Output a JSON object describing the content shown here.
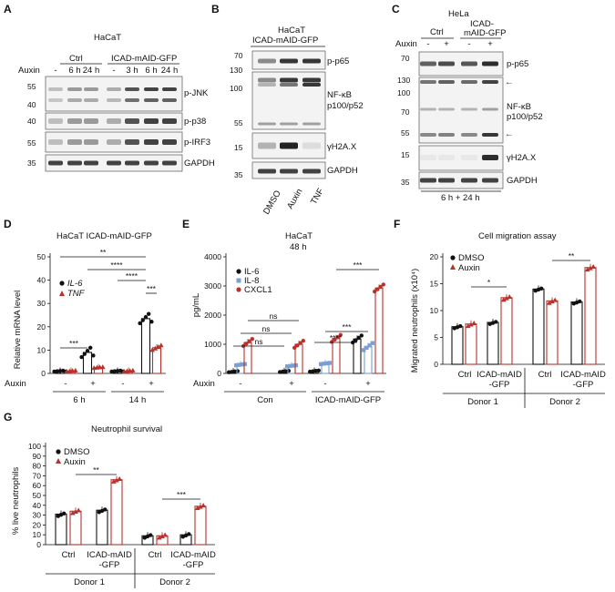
{
  "panelA": {
    "letter": "A",
    "cell": "HaCaT",
    "ctrl": "Ctrl",
    "icad": "ICAD-mAID-GFP",
    "auxin": "Auxin",
    "lanes": [
      "-",
      "6 h",
      "24 h",
      "-",
      "3 h",
      "6 h",
      "24 h"
    ],
    "blots": [
      "p-JNK",
      "p-p38",
      "p-IRF3",
      "GAPDH"
    ],
    "mw": [
      "55",
      "40",
      "40",
      "55",
      "35"
    ]
  },
  "panelB": {
    "letter": "B",
    "cell": "HaCaT",
    "construct": "ICAD-mAID-GFP",
    "blots": [
      "p-p65",
      "NF-κB",
      "p100/p52",
      "γH2A.X",
      "GAPDH"
    ],
    "mw": [
      "70",
      "130",
      "100",
      "55",
      "15",
      "35"
    ],
    "lanes": [
      "DMSO",
      "Auxin",
      "TNF"
    ]
  },
  "panelC": {
    "letter": "C",
    "cell": "HeLa",
    "ctrl": "Ctrl",
    "icad1": "ICAD-",
    "icad2": "mAID-GFP",
    "auxin": "Auxin",
    "lanes": [
      "-",
      "+",
      "-",
      "+"
    ],
    "blots": [
      "p-p65",
      "NF-κB",
      "p100/p52",
      "γH2A.X",
      "GAPDH"
    ],
    "mw": [
      "70",
      "130",
      "100",
      "70",
      "55",
      "15",
      "35"
    ],
    "time": "6 h + 24 h",
    "arrow": "←"
  },
  "panelD": {
    "letter": "D",
    "title": "HaCaT ICAD-mAID-GFP",
    "ylabel": "Relative mRNA level",
    "yticks": [
      "0",
      "10",
      "20",
      "30",
      "40",
      "50"
    ],
    "legend": [
      "IL-6",
      "TNF"
    ],
    "auxin": "Auxin",
    "signs": [
      "-",
      "+",
      "-",
      "+"
    ],
    "times": [
      "6 h",
      "14 h"
    ],
    "stars": [
      "**",
      "****",
      "****",
      "***",
      "***"
    ]
  },
  "panelE": {
    "letter": "E",
    "title": "HaCaT",
    "subtitle": "48 h",
    "ylabel": "pg/mL",
    "yticks": [
      "0",
      "1000",
      "2000",
      "3000",
      "4000"
    ],
    "legend": [
      "IL-6",
      "IL-8",
      "CXCL1"
    ],
    "auxin": "Auxin",
    "signs": [
      "-",
      "+",
      "-",
      "+"
    ],
    "groups": [
      "Con",
      "ICAD-mAID-GFP"
    ],
    "stars": [
      "ns",
      "ns",
      "ns",
      "***",
      "***",
      "****"
    ]
  },
  "panelF": {
    "letter": "F",
    "title": "Cell migration assay",
    "ylabel": "Migrated neutrophils (x10⁴)",
    "yticks": [
      "0",
      "5",
      "10",
      "15",
      "20"
    ],
    "legend": [
      "DMSO",
      "Auxin"
    ],
    "cats": [
      "Ctrl",
      "ICAD-mAID",
      "-GFP",
      "Ctrl",
      "ICAD-mAID",
      "-GFP"
    ],
    "donors": [
      "Donor 1",
      "Donor 2"
    ],
    "stars": [
      "*",
      "**"
    ]
  },
  "panelG": {
    "letter": "G",
    "title": "Neutrophil survival",
    "ylabel": "% live neutrophils",
    "yticks": [
      "0",
      "10",
      "20",
      "30",
      "40",
      "50",
      "60",
      "70",
      "80",
      "90",
      "100"
    ],
    "legend": [
      "DMSO",
      "Auxin"
    ],
    "cats": [
      "Ctrl",
      "ICAD-mAID",
      "-GFP",
      "Ctrl",
      "ICAD-mAID",
      "-GFP"
    ],
    "donors": [
      "Donor 1",
      "Donor 2"
    ],
    "stars": [
      "**",
      "***"
    ]
  },
  "colors": {
    "black": "#111111",
    "red": "#b8312a",
    "blue": "#7b9fd4",
    "dark": "#222222"
  },
  "chart_data": [
    {
      "type": "bar",
      "panel": "D",
      "title": "HaCaT ICAD-mAID-GFP",
      "ylabel": "Relative mRNA level",
      "ylim": [
        0,
        50
      ],
      "categories": [
        "6 h -",
        "6 h +",
        "14 h -",
        "14 h +"
      ],
      "series": [
        {
          "name": "IL-6",
          "values": [
            1,
            9,
            1,
            23.5
          ]
        },
        {
          "name": "TNF",
          "values": [
            1,
            2.5,
            1,
            11
          ]
        }
      ]
    },
    {
      "type": "bar",
      "panel": "E",
      "title": "HaCaT",
      "subtitle": "48 h",
      "ylabel": "pg/mL",
      "ylim": [
        0,
        4000
      ],
      "categories": [
        "Con -",
        "Con +",
        "ICAD-mAID-GFP -",
        "ICAD-mAID-GFP +"
      ],
      "series": [
        {
          "name": "IL-6",
          "values": [
            60,
            70,
            80,
            1180
          ]
        },
        {
          "name": "IL-8",
          "values": [
            300,
            260,
            340,
            920
          ]
        },
        {
          "name": "CXCL1",
          "values": [
            1060,
            1000,
            1200,
            2930
          ]
        }
      ]
    },
    {
      "type": "bar",
      "panel": "F",
      "title": "Cell migration assay",
      "ylabel": "Migrated neutrophils (x10⁴)",
      "ylim": [
        0,
        20
      ],
      "categories": [
        "Donor 1 Ctrl",
        "Donor 1 ICAD-mAID-GFP",
        "Donor 2 Ctrl",
        "Donor 2 ICAD-mAID-GFP"
      ],
      "series": [
        {
          "name": "DMSO",
          "values": [
            7,
            7.8,
            14,
            11.6
          ]
        },
        {
          "name": "Auxin",
          "values": [
            7.5,
            12.4,
            11.8,
            18
          ]
        }
      ]
    },
    {
      "type": "bar",
      "panel": "G",
      "title": "Neutrophil survival",
      "ylabel": "% live neutrophils",
      "ylim": [
        0,
        100
      ],
      "categories": [
        "Donor 1 Ctrl",
        "Donor 1 ICAD-mAID-GFP",
        "Donor 2 Ctrl",
        "Donor 2 ICAD-mAID-GFP"
      ],
      "series": [
        {
          "name": "DMSO",
          "values": [
            31,
            35,
            9,
            10
          ]
        },
        {
          "name": "Auxin",
          "values": [
            34,
            66,
            9,
            39
          ]
        }
      ]
    }
  ]
}
